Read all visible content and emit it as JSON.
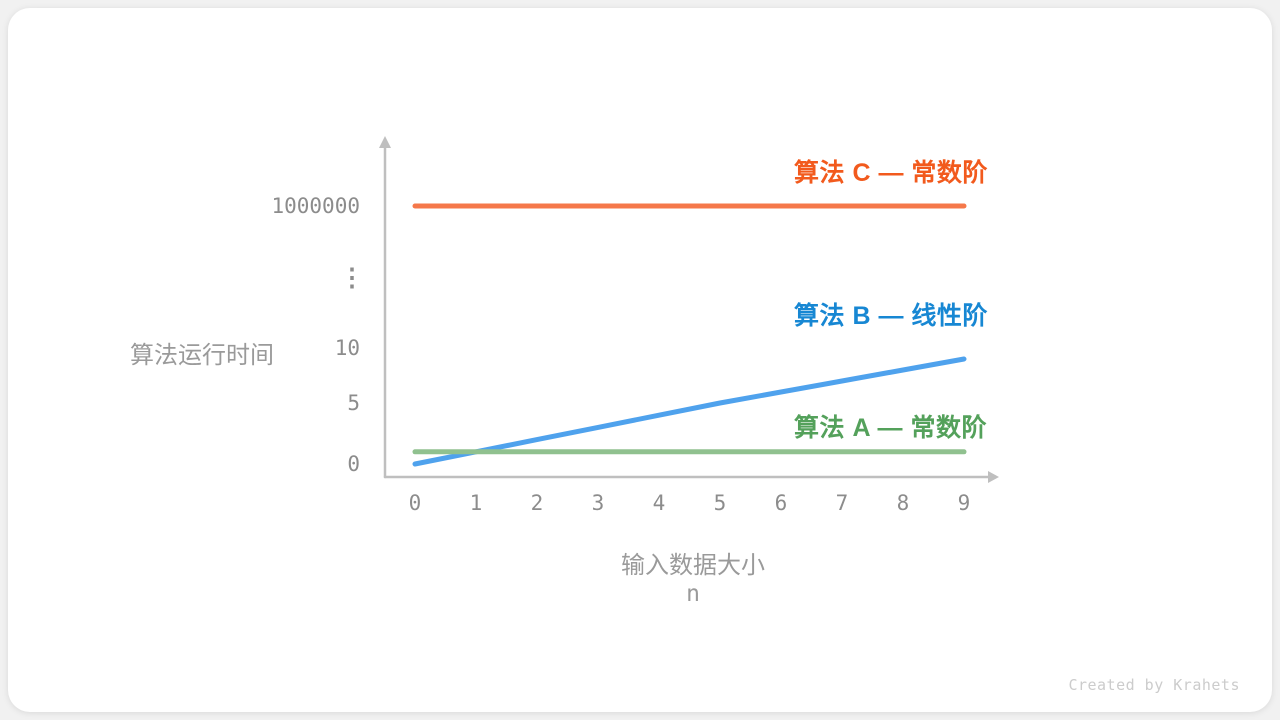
{
  "credit": "Created by Krahets",
  "chart_data": {
    "type": "line",
    "title": "",
    "xlabel": "输入数据大小",
    "xlabel_unit": "n",
    "ylabel": "算法运行时间",
    "x": [
      0,
      1,
      2,
      3,
      4,
      5,
      6,
      7,
      8,
      9
    ],
    "x_tick_labels": [
      "0",
      "1",
      "2",
      "3",
      "4",
      "5",
      "6",
      "7",
      "8",
      "9"
    ],
    "y_ticks": [
      0,
      5,
      10,
      1000000
    ],
    "y_tick_labels": [
      "0",
      "5",
      "10",
      "1000000"
    ],
    "y_axis_break_symbol": "⋮",
    "grid": false,
    "legend_position": "labels-above-lines-right",
    "axis_color": "#bfbfbf",
    "tick_color": "#8c8c8c",
    "axis_title_color": "#9a9a9a",
    "credit_color": "#cccccc",
    "series": [
      {
        "name": "算法 C — 常数阶",
        "complexity": "常数阶",
        "values": [
          1000000,
          1000000,
          1000000,
          1000000,
          1000000,
          1000000,
          1000000,
          1000000,
          1000000,
          1000000
        ],
        "line_color": "#f5784a",
        "label_color": "#f25a1d"
      },
      {
        "name": "算法 B — 线性阶",
        "complexity": "线性阶",
        "values": [
          0,
          1,
          2,
          3,
          4,
          5,
          6,
          7,
          8,
          9
        ],
        "line_color": "#4fa2ed",
        "label_color": "#1787d3"
      },
      {
        "name": "算法 A — 常数阶",
        "complexity": "常数阶",
        "values": [
          1,
          1,
          1,
          1,
          1,
          1,
          1,
          1,
          1,
          1
        ],
        "line_color": "#90c18f",
        "label_color": "#54a15b"
      }
    ]
  }
}
